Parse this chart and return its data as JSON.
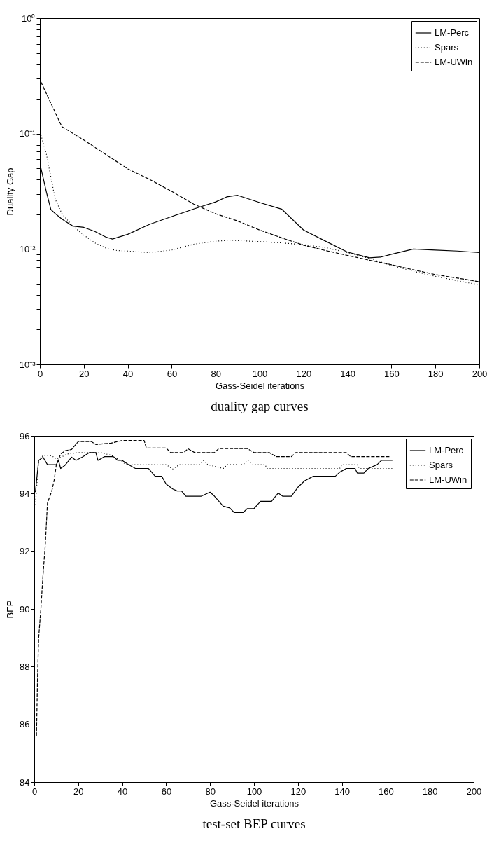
{
  "chart_data": [
    {
      "type": "line",
      "title": "duality gap curves",
      "xlabel": "Gass-Seidel iterations",
      "ylabel": "Duality Gap",
      "log": "y",
      "legend": "top right",
      "xlim": [
        0,
        200
      ],
      "xticks": [
        0,
        20,
        40,
        60,
        80,
        100,
        120,
        140,
        160,
        180,
        200
      ],
      "ylim": [
        0.001,
        1
      ],
      "yticks": [
        {
          "value": 0.001,
          "label": "10⁻³"
        },
        {
          "value": 0.002,
          "label": null
        },
        {
          "value": 0.003,
          "label": null
        },
        {
          "value": 0.004,
          "label": null
        },
        {
          "value": 0.005,
          "label": null
        },
        {
          "value": 0.006,
          "label": null
        },
        {
          "value": 0.007,
          "label": null
        },
        {
          "value": 0.008,
          "label": null
        },
        {
          "value": 0.009,
          "label": null
        },
        {
          "value": 0.01,
          "label": "10⁻²"
        },
        {
          "value": 0.02,
          "label": null
        },
        {
          "value": 0.03,
          "label": null
        },
        {
          "value": 0.04,
          "label": null
        },
        {
          "value": 0.05,
          "label": null
        },
        {
          "value": 0.06,
          "label": null
        },
        {
          "value": 0.07,
          "label": null
        },
        {
          "value": 0.08,
          "label": null
        },
        {
          "value": 0.09,
          "label": null
        },
        {
          "value": 0.1,
          "label": "10⁻¹"
        },
        {
          "value": 0.2,
          "label": null
        },
        {
          "value": 0.3,
          "label": null
        },
        {
          "value": 0.4,
          "label": null
        },
        {
          "value": 0.5,
          "label": null
        },
        {
          "value": 0.6,
          "label": null
        },
        {
          "value": 0.7,
          "label": null
        },
        {
          "value": 0.8,
          "label": null
        },
        {
          "value": 0.9,
          "label": null
        },
        {
          "value": 1,
          "label": "10⁰"
        }
      ],
      "series": [
        {
          "name": "LM-Perc",
          "color": "#000000",
          "line_style": "solid",
          "x": [
            0.5,
            3,
            5,
            7,
            10,
            15,
            20,
            25,
            30,
            33,
            40,
            50,
            60,
            70,
            80,
            85,
            90,
            100,
            110,
            120,
            130,
            140,
            150,
            155,
            160,
            170,
            180,
            190,
            200
          ],
          "values": [
            0.05,
            0.031,
            0.022,
            0.0203,
            0.0182,
            0.0158,
            0.0154,
            0.0142,
            0.0127,
            0.0122,
            0.0134,
            0.0164,
            0.0191,
            0.0222,
            0.0256,
            0.0283,
            0.0292,
            0.0253,
            0.0222,
            0.0146,
            0.0117,
            0.0094,
            0.0084,
            0.0085,
            0.009,
            0.01,
            0.0098,
            0.0096,
            0.0093
          ]
        },
        {
          "name": "Spars",
          "color": "#000000",
          "line_style": "dotted",
          "x": [
            0.5,
            3,
            5,
            7,
            10,
            15,
            20,
            25,
            30,
            35,
            40,
            50,
            60,
            70,
            80,
            87,
            100,
            110,
            120,
            130,
            140,
            150,
            160,
            170,
            180,
            190,
            200
          ],
          "values": [
            0.097,
            0.066,
            0.042,
            0.027,
            0.0203,
            0.0158,
            0.0132,
            0.0113,
            0.0102,
            0.0097,
            0.0096,
            0.0093,
            0.0098,
            0.011,
            0.0117,
            0.0119,
            0.0116,
            0.0113,
            0.0109,
            0.0103,
            0.0093,
            0.0083,
            0.0072,
            0.0064,
            0.0058,
            0.0053,
            0.0049
          ]
        },
        {
          "name": "LM-UWin",
          "color": "#000000",
          "line_style": "dashed",
          "x": [
            0.5,
            10,
            20,
            30,
            40,
            50,
            60,
            70,
            80,
            90,
            100,
            110,
            120,
            130,
            140,
            150,
            160,
            170,
            180,
            190,
            200
          ],
          "values": [
            0.28,
            0.115,
            0.088,
            0.066,
            0.0495,
            0.04,
            0.0316,
            0.0245,
            0.0202,
            0.0175,
            0.0146,
            0.0125,
            0.0108,
            0.0097,
            0.0088,
            0.008,
            0.0073,
            0.0066,
            0.006,
            0.0056,
            0.0052
          ]
        }
      ]
    },
    {
      "type": "line",
      "title": "test-set BEP curves",
      "xlabel": "Gass-Seidel iterations",
      "ylabel": "BEP",
      "legend": "top right",
      "xlim": [
        0,
        200
      ],
      "xticks": [
        0,
        20,
        40,
        60,
        80,
        100,
        120,
        140,
        160,
        180,
        200
      ],
      "ylim": [
        84,
        96
      ],
      "yticks": [
        84,
        86,
        88,
        90,
        92,
        94,
        96
      ],
      "series": [
        {
          "name": "LM-Perc",
          "color": "#000000",
          "line_style": "solid",
          "x": [
            0.5,
            2,
            4,
            6,
            10,
            11,
            12,
            14,
            17,
            19,
            22,
            25,
            28,
            29,
            32,
            36,
            38,
            40,
            43,
            46,
            52,
            55,
            58,
            60,
            63,
            65,
            67,
            69,
            76,
            80,
            82,
            86,
            89,
            91,
            95,
            97,
            100,
            103,
            108,
            111,
            113,
            117,
            120,
            123,
            127,
            137,
            139,
            142,
            146,
            147,
            150,
            152,
            156,
            158,
            163
          ],
          "values": [
            94.05,
            95.15,
            95.26,
            95.0,
            95.0,
            95.15,
            94.87,
            94.98,
            95.26,
            95.15,
            95.27,
            95.42,
            95.42,
            95.15,
            95.28,
            95.28,
            95.15,
            95.15,
            95.0,
            94.87,
            94.87,
            94.6,
            94.6,
            94.33,
            94.16,
            94.09,
            94.09,
            93.91,
            93.91,
            94.05,
            93.91,
            93.56,
            93.5,
            93.34,
            93.34,
            93.48,
            93.48,
            93.73,
            93.73,
            94.02,
            93.91,
            93.91,
            94.22,
            94.44,
            94.6,
            94.6,
            94.74,
            94.87,
            94.87,
            94.71,
            94.71,
            94.87,
            95.0,
            95.15,
            95.15
          ]
        },
        {
          "name": "Spars",
          "color": "#000000",
          "line_style": "dotted",
          "x": [
            0.5,
            2,
            4,
            8,
            10,
            12,
            15,
            20,
            30,
            35,
            39,
            42,
            60,
            63,
            66,
            75,
            77,
            79,
            86,
            88,
            95,
            97,
            100,
            105,
            106,
            139,
            140,
            147,
            148,
            155,
            163
          ],
          "values": [
            93.6,
            95.2,
            95.31,
            95.31,
            95.2,
            95.25,
            95.37,
            95.42,
            95.42,
            95.33,
            95.15,
            95.0,
            95.0,
            94.85,
            95.0,
            95.0,
            95.15,
            95.0,
            94.87,
            95.0,
            95.0,
            95.15,
            95.0,
            95.0,
            94.87,
            94.87,
            95.0,
            95.0,
            94.87,
            94.87,
            94.87
          ]
        },
        {
          "name": "LM-UWin",
          "color": "#000000",
          "line_style": "dashed",
          "x": [
            1,
            1.5,
            2,
            3,
            4,
            5,
            6,
            8,
            9,
            10,
            12,
            14,
            17,
            20,
            26,
            28,
            35,
            40,
            50,
            51,
            60,
            62,
            68,
            70,
            73,
            82,
            84,
            97,
            100,
            107,
            110,
            117,
            119,
            128,
            142,
            144,
            152,
            162
          ],
          "values": [
            85.6,
            87.7,
            89.0,
            90.0,
            91.2,
            92.2,
            93.67,
            94.1,
            94.44,
            94.98,
            95.37,
            95.48,
            95.53,
            95.8,
            95.8,
            95.7,
            95.75,
            95.84,
            95.84,
            95.58,
            95.58,
            95.42,
            95.42,
            95.55,
            95.42,
            95.42,
            95.56,
            95.56,
            95.42,
            95.42,
            95.28,
            95.28,
            95.42,
            95.42,
            95.42,
            95.28,
            95.28,
            95.28
          ]
        }
      ]
    }
  ]
}
